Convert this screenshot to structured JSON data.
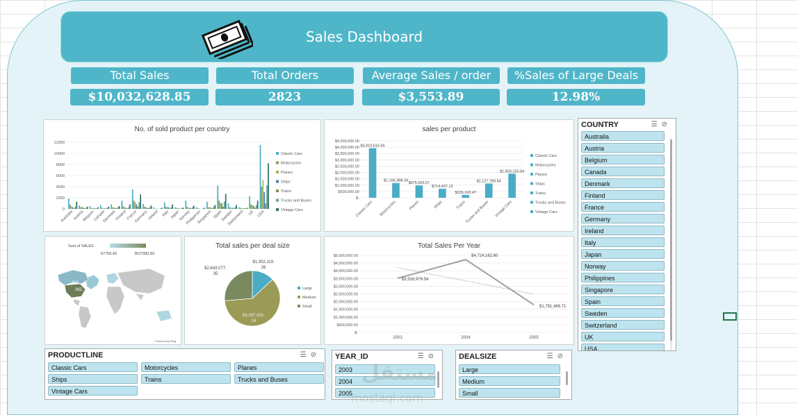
{
  "header": {
    "title": "Sales Dashboard",
    "icon": "money-icon"
  },
  "kpis": [
    {
      "label": "Total Sales",
      "value": "$10,032,628.85"
    },
    {
      "label": "Total Orders",
      "value": "2823"
    },
    {
      "label": "Average Sales / order",
      "value": "$3,553.89"
    },
    {
      "label": "%Sales of Large Deals",
      "value": "12.98%"
    }
  ],
  "colors": {
    "accent": "#4fb6c9",
    "series": [
      "#4bacc6",
      "#7f9e5c",
      "#9bbb59",
      "#4f7fa6",
      "#8a8a54",
      "#5f9ea0",
      "#2e6e5e"
    ]
  },
  "chart_data": [
    {
      "type": "bar",
      "title": "No. of sold product per country",
      "categories": [
        "Australia",
        "Austria",
        "Belgium",
        "Canada",
        "Denmark",
        "Finland",
        "France",
        "Germany",
        "Ireland",
        "Italy",
        "Japan",
        "Norway",
        "Philippines",
        "Singapore",
        "Spain",
        "Sweden",
        "Switzerland",
        "UK",
        "USA"
      ],
      "series": [
        {
          "name": "Classic Cars",
          "values": [
            1900,
            600,
            500,
            700,
            800,
            1500,
            3500,
            900,
            300,
            1200,
            300,
            1500,
            300,
            1300,
            4200,
            1000,
            300,
            2300,
            11500
          ]
        },
        {
          "name": "Motorcycles",
          "values": [
            800,
            300,
            100,
            200,
            300,
            500,
            1500,
            400,
            0,
            400,
            200,
            400,
            100,
            300,
            1500,
            300,
            200,
            800,
            4000
          ]
        },
        {
          "name": "Planes",
          "values": [
            500,
            400,
            200,
            100,
            200,
            300,
            1200,
            300,
            100,
            300,
            100,
            200,
            100,
            300,
            1100,
            200,
            100,
            700,
            5200
          ]
        },
        {
          "name": "Ships",
          "values": [
            300,
            200,
            100,
            100,
            200,
            200,
            800,
            200,
            0,
            300,
            100,
            200,
            0,
            200,
            1000,
            200,
            100,
            500,
            3000
          ]
        },
        {
          "name": "Trains",
          "values": [
            100,
            100,
            100,
            100,
            100,
            100,
            400,
            100,
            0,
            100,
            0,
            100,
            0,
            100,
            400,
            100,
            100,
            200,
            1000
          ]
        },
        {
          "name": "Trucks and Buses",
          "values": [
            400,
            200,
            100,
            200,
            300,
            300,
            1200,
            300,
            100,
            300,
            200,
            300,
            100,
            400,
            1300,
            300,
            100,
            700,
            4200
          ]
        },
        {
          "name": "Vintage Cars",
          "values": [
            1300,
            400,
            300,
            400,
            500,
            800,
            2600,
            600,
            200,
            800,
            200,
            600,
            200,
            700,
            2700,
            700,
            200,
            1500,
            8200
          ]
        }
      ],
      "yticks": [
        "0",
        "2000",
        "4000",
        "6000",
        "8000",
        "10000",
        "12000"
      ],
      "ylim": [
        0,
        12000
      ],
      "legend": "right"
    },
    {
      "type": "bar",
      "title": "sales per product",
      "categories": [
        "Classic Cars",
        "Motorcycles",
        "Planes",
        "Ships",
        "Trains",
        "Trucks and Buses",
        "Vintage Cars"
      ],
      "values": [
        3919615.66,
        1166388.34,
        975003.57,
        714437.13,
        226243.47,
        1127789.84,
        1903150.84
      ],
      "labels": [
        "$3,919,615.66",
        "$1,166,388.34",
        "$975,003.57",
        "$714,437.13",
        "$226,243.47",
        "$1,127,789.84",
        "$1,903,150.84"
      ],
      "yticks": [
        "$-",
        "$500,000.00",
        "$1,000,000.00",
        "$1,500,000.00",
        "$2,000,000.00",
        "$2,500,000.00",
        "$3,000,000.00",
        "$3,500,000.00",
        "$4,000,000.00",
        "$4,500,000.00"
      ],
      "ylim": [
        0,
        4500000
      ],
      "legend": "right"
    },
    {
      "type": "map",
      "legend_title": "Sum of SALES",
      "legend_min": "57756.43",
      "legend_max": "3627982.83",
      "labels": [
        "224...",
        "362..."
      ],
      "credit": "Powered by Bing"
    },
    {
      "type": "pie",
      "title": "Total sales per deal size",
      "categories": [
        "Large",
        "Medium",
        "Small"
      ],
      "values": [
        1302119.26,
        6087432.24,
        2643077.35
      ],
      "labels": [
        "$1,302,119.26",
        "$6,087,432.24",
        "$2,643,077.35"
      ],
      "colors": [
        "#4bacc6",
        "#9c9a57",
        "#7a8a5f"
      ],
      "legend": "right"
    },
    {
      "type": "line",
      "title": "Total Sales Per Year",
      "x": [
        "2003",
        "2004",
        "2005"
      ],
      "values": [
        3516979.54,
        4724162.6,
        1791486.71
      ],
      "labels": [
        "$3,516,979.54",
        "$4,724,162.60",
        "$1,791,486.71"
      ],
      "yticks": [
        "$-",
        "$500,000.00",
        "$1,000,000.00",
        "$1,500,000.00",
        "$2,000,000.00",
        "$2,500,000.00",
        "$3,000,000.00",
        "$3,500,000.00",
        "$4,000,000.00",
        "$4,500,000.00",
        "$5,000,000.00"
      ],
      "ylim": [
        0,
        5000000
      ],
      "trendline": true
    }
  ],
  "slicers": {
    "country": {
      "title": "COUNTRY",
      "items": [
        "Australia",
        "Austria",
        "Belgium",
        "Canada",
        "Denmark",
        "Finland",
        "France",
        "Germany",
        "Ireland",
        "Italy",
        "Japan",
        "Norway",
        "Philippines",
        "Singapore",
        "Spain",
        "Sweden",
        "Switzerland",
        "UK",
        "USA"
      ]
    },
    "productline": {
      "title": "PRODUCTLINE",
      "items": [
        "Classic Cars",
        "Motorcycles",
        "Planes",
        "Ships",
        "Trains",
        "Trucks and Buses",
        "Vintage Cars"
      ]
    },
    "year": {
      "title": "YEAR_ID",
      "items": [
        "2003",
        "2004",
        "2005"
      ]
    },
    "dealsize": {
      "title": "DEALSIZE",
      "items": [
        "Large",
        "Medium",
        "Small"
      ]
    }
  },
  "watermark": {
    "line1": "مستقل",
    "line2": "mostaql.com"
  }
}
